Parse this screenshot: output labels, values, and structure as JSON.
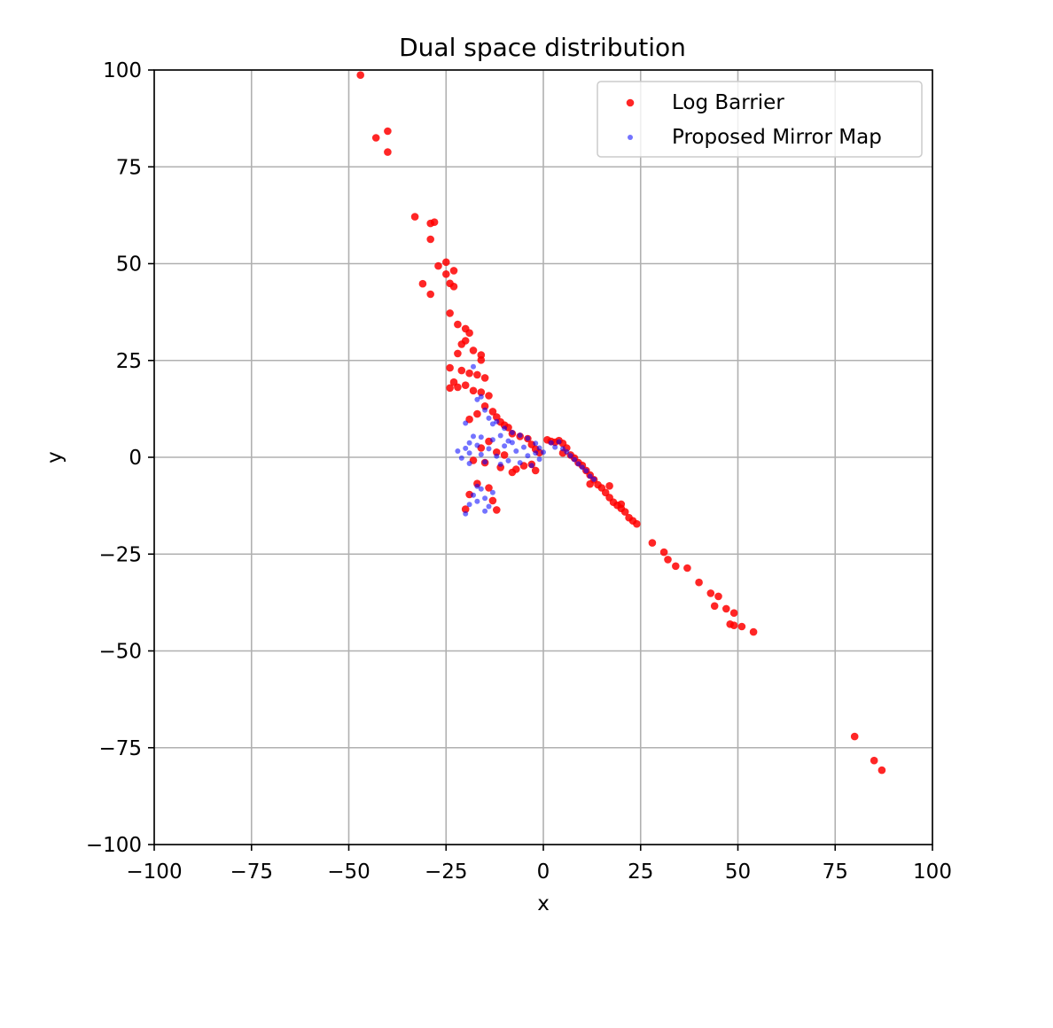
{
  "chart_data": {
    "type": "scatter",
    "title": "Dual space distribution",
    "xlabel": "x",
    "ylabel": "y",
    "xlim": [
      -100,
      100
    ],
    "ylim": [
      -100,
      100
    ],
    "xticks": [
      -100,
      -75,
      -50,
      -25,
      0,
      25,
      50,
      75,
      100
    ],
    "yticks": [
      -100,
      -75,
      -50,
      -25,
      0,
      25,
      50,
      75,
      100
    ],
    "xtick_labels": [
      "−100",
      "−75",
      "−50",
      "−25",
      "0",
      "25",
      "50",
      "75",
      "100"
    ],
    "ytick_labels": [
      "−100",
      "−75",
      "−50",
      "−25",
      "0",
      "25",
      "50",
      "75",
      "100"
    ],
    "grid": true,
    "legend_position": "top-right",
    "series": [
      {
        "name": "Log Barrier",
        "color": "#ff0000",
        "points": [
          [
            -47,
            98.7
          ],
          [
            -43,
            82.5
          ],
          [
            -40,
            84.2
          ],
          [
            -40,
            78.8
          ],
          [
            -33,
            62.1
          ],
          [
            -29,
            60.4
          ],
          [
            -28,
            60.7
          ],
          [
            -29,
            56.3
          ],
          [
            -27,
            49.4
          ],
          [
            -25,
            50.4
          ],
          [
            -25,
            47.3
          ],
          [
            -23,
            48.2
          ],
          [
            -31,
            44.8
          ],
          [
            -29,
            42.1
          ],
          [
            -24,
            44.9
          ],
          [
            -23,
            44.1
          ],
          [
            -24,
            37.2
          ],
          [
            -22,
            34.3
          ],
          [
            -20,
            33.2
          ],
          [
            -20,
            30.1
          ],
          [
            -21,
            29.2
          ],
          [
            -19,
            32.1
          ],
          [
            -22,
            26.8
          ],
          [
            -18,
            27.6
          ],
          [
            -16,
            26.4
          ],
          [
            -16,
            25.1
          ],
          [
            -24,
            23.1
          ],
          [
            -21,
            22.4
          ],
          [
            -19,
            21.7
          ],
          [
            -17,
            21.3
          ],
          [
            -15,
            20.5
          ],
          [
            -23,
            19.4
          ],
          [
            -20,
            18.6
          ],
          [
            -18,
            17.2
          ],
          [
            -16,
            16.8
          ],
          [
            -14,
            15.9
          ],
          [
            -22,
            18.1
          ],
          [
            -24,
            17.9
          ],
          [
            -15,
            13.2
          ],
          [
            -13,
            11.8
          ],
          [
            -12,
            10.4
          ],
          [
            -11,
            9.1
          ],
          [
            -10,
            8.3
          ],
          [
            -9,
            7.7
          ],
          [
            -17,
            11.2
          ],
          [
            -19,
            9.8
          ],
          [
            -8,
            6.1
          ],
          [
            -6,
            5.4
          ],
          [
            -4,
            4.8
          ],
          [
            -3,
            3.3
          ],
          [
            -2,
            2.1
          ],
          [
            -1,
            1.2
          ],
          [
            -14,
            4.1
          ],
          [
            -16,
            2.4
          ],
          [
            -12,
            1.3
          ],
          [
            -10,
            0.6
          ],
          [
            -18,
            -0.8
          ],
          [
            -15,
            -1.4
          ],
          [
            -11,
            -2.6
          ],
          [
            -7,
            -3.1
          ],
          [
            -5,
            -2.2
          ],
          [
            -3,
            -1.8
          ],
          [
            -2,
            -3.4
          ],
          [
            -8,
            -3.9
          ],
          [
            1,
            4.5
          ],
          [
            2,
            4.1
          ],
          [
            3,
            3.9
          ],
          [
            4,
            4.3
          ],
          [
            5,
            3.6
          ],
          [
            6,
            2.4
          ],
          [
            5,
            1.1
          ],
          [
            7,
            0.6
          ],
          [
            8,
            -0.2
          ],
          [
            9,
            -1.4
          ],
          [
            10,
            -2.1
          ],
          [
            11,
            -3.4
          ],
          [
            12,
            -4.6
          ],
          [
            13,
            -5.8
          ],
          [
            14,
            -7.1
          ],
          [
            15,
            -7.9
          ],
          [
            16,
            -9.1
          ],
          [
            17,
            -10.4
          ],
          [
            18,
            -11.6
          ],
          [
            19,
            -12.4
          ],
          [
            20,
            -13.2
          ],
          [
            21,
            -14.1
          ],
          [
            22,
            -15.6
          ],
          [
            23,
            -16.4
          ],
          [
            24,
            -17.2
          ],
          [
            12,
            -6.9
          ],
          [
            17,
            -7.4
          ],
          [
            20,
            -12.1
          ],
          [
            -17,
            -6.8
          ],
          [
            -14,
            -7.9
          ],
          [
            -13,
            -11.2
          ],
          [
            -20,
            -13.4
          ],
          [
            -19,
            -9.6
          ],
          [
            -12,
            -13.6
          ],
          [
            28,
            -22.1
          ],
          [
            31,
            -24.5
          ],
          [
            32,
            -26.4
          ],
          [
            34,
            -28.1
          ],
          [
            37,
            -28.6
          ],
          [
            40,
            -32.3
          ],
          [
            43,
            -35.1
          ],
          [
            45,
            -35.9
          ],
          [
            44,
            -38.4
          ],
          [
            47,
            -39.1
          ],
          [
            49,
            -40.2
          ],
          [
            48,
            -43.1
          ],
          [
            49,
            -43.4
          ],
          [
            51,
            -43.7
          ],
          [
            54,
            -45.1
          ],
          [
            80,
            -72.1
          ],
          [
            85,
            -78.3
          ],
          [
            87,
            -80.8
          ]
        ]
      },
      {
        "name": "Proposed Mirror Map",
        "color": "#0000ff",
        "points": [
          [
            -20,
            8.8
          ],
          [
            -18,
            5.4
          ],
          [
            -16,
            15.6
          ],
          [
            -15,
            12.2
          ],
          [
            -14,
            10.1
          ],
          [
            -12,
            9.2
          ],
          [
            -10,
            7.5
          ],
          [
            -8,
            6.4
          ],
          [
            -6,
            5.7
          ],
          [
            -4,
            4.9
          ],
          [
            -2,
            3.6
          ],
          [
            -1,
            2.4
          ],
          [
            -20,
            2.3
          ],
          [
            -19,
            1.1
          ],
          [
            -21,
            -0.2
          ],
          [
            -19,
            -1.6
          ],
          [
            -17,
            3.1
          ],
          [
            -16,
            0.7
          ],
          [
            -15,
            -1.2
          ],
          [
            -14,
            2.2
          ],
          [
            -13,
            4.5
          ],
          [
            -12,
            0.3
          ],
          [
            -11,
            -1.8
          ],
          [
            -10,
            2.9
          ],
          [
            -9,
            -0.9
          ],
          [
            -8,
            3.8
          ],
          [
            -7,
            1.6
          ],
          [
            -6,
            -1.4
          ],
          [
            -5,
            2.6
          ],
          [
            -4,
            0.4
          ],
          [
            -3,
            -2.1
          ],
          [
            -2,
            1.1
          ],
          [
            -1,
            -0.5
          ],
          [
            0,
            1.3
          ],
          [
            2,
            3.7
          ],
          [
            3,
            2.6
          ],
          [
            4,
            4.0
          ],
          [
            5,
            2.2
          ],
          [
            6,
            1.4
          ],
          [
            7,
            0.4
          ],
          [
            8,
            -0.6
          ],
          [
            9,
            -1.7
          ],
          [
            10,
            -2.6
          ],
          [
            11,
            -3.5
          ],
          [
            12,
            -4.9
          ],
          [
            13,
            -5.7
          ],
          [
            -20,
            -14.6
          ],
          [
            -19,
            -12.2
          ],
          [
            -18,
            -9.8
          ],
          [
            -17,
            -11.4
          ],
          [
            -16,
            -8.2
          ],
          [
            -15,
            -10.6
          ],
          [
            -14,
            -12.7
          ],
          [
            -13,
            -9.1
          ],
          [
            -15,
            -13.9
          ],
          [
            -17,
            -7.5
          ],
          [
            -19,
            3.7
          ],
          [
            -16,
            5.2
          ],
          [
            -11,
            5.6
          ],
          [
            -9,
            4.2
          ],
          [
            -18,
            23.4
          ],
          [
            -17,
            14.9
          ],
          [
            -13,
            8.6
          ],
          [
            -22,
            1.6
          ]
        ]
      }
    ]
  }
}
